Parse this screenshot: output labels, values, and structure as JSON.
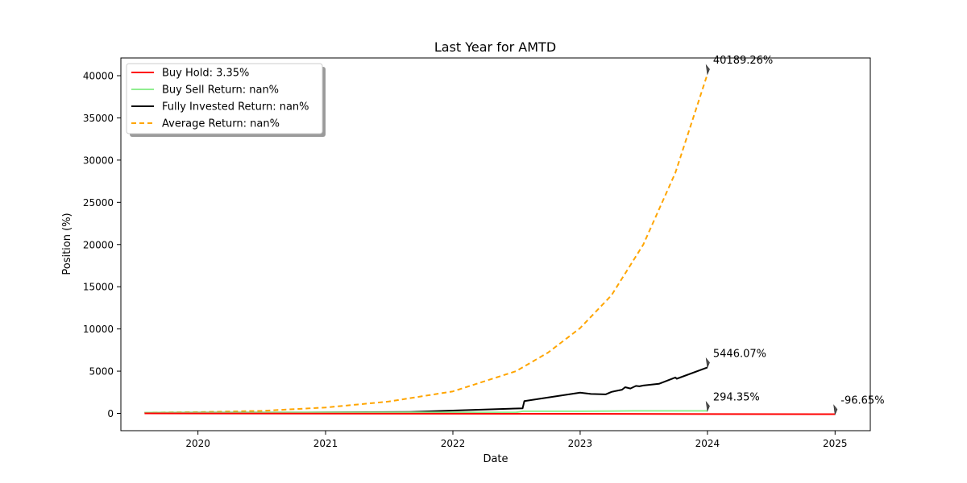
{
  "chart_data": {
    "type": "line",
    "title": "Last Year for AMTD",
    "xlabel": "Date",
    "ylabel": "Position (%)",
    "x_ticks": [
      "2020",
      "2021",
      "2022",
      "2023",
      "2024",
      "2025"
    ],
    "y_ticks": [
      "0",
      "5000",
      "10000",
      "15000",
      "20000",
      "25000",
      "30000",
      "35000",
      "40000"
    ],
    "xlim": [
      "2019-05-25",
      "2025-04-12"
    ],
    "ylim": [
      -2050,
      42100
    ],
    "grid": false,
    "legend_position": "top-left",
    "legend": [
      {
        "label": "Buy Hold: 3.35%",
        "color": "#ff0000",
        "style": "solid"
      },
      {
        "label": "Buy Sell Return: nan%",
        "color": "#90ee90",
        "style": "solid"
      },
      {
        "label": "Fully Invested Return: nan%",
        "color": "#000000",
        "style": "solid"
      },
      {
        "label": "Average Return: nan%",
        "color": "#ffa500",
        "style": "dashed"
      }
    ],
    "series": [
      {
        "name": "Average Return: nan%",
        "color": "#ffa500",
        "style": "dashed",
        "points": [
          [
            "2019-08-01",
            100
          ],
          [
            "2020-01-01",
            150
          ],
          [
            "2020-07-01",
            300
          ],
          [
            "2021-01-01",
            700
          ],
          [
            "2021-07-01",
            1400
          ],
          [
            "2022-01-01",
            2600
          ],
          [
            "2022-07-01",
            5000
          ],
          [
            "2022-10-01",
            7200
          ],
          [
            "2023-01-01",
            10100
          ],
          [
            "2023-04-01",
            14000
          ],
          [
            "2023-07-01",
            20000
          ],
          [
            "2023-10-01",
            28500
          ],
          [
            "2024-01-01",
            40189.26
          ]
        ]
      },
      {
        "name": "Fully Invested Return: nan%",
        "color": "#000000",
        "style": "solid",
        "points": [
          [
            "2019-08-01",
            100
          ],
          [
            "2021-01-01",
            110
          ],
          [
            "2021-09-01",
            170
          ],
          [
            "2022-01-01",
            330
          ],
          [
            "2022-07-20",
            600
          ],
          [
            "2022-07-25",
            1450
          ],
          [
            "2022-09-01",
            1700
          ],
          [
            "2023-01-01",
            2450
          ],
          [
            "2023-02-01",
            2300
          ],
          [
            "2023-03-15",
            2250
          ],
          [
            "2023-04-01",
            2550
          ],
          [
            "2023-05-01",
            2800
          ],
          [
            "2023-05-10",
            3100
          ],
          [
            "2023-05-25",
            2950
          ],
          [
            "2023-06-10",
            3250
          ],
          [
            "2023-06-20",
            3200
          ],
          [
            "2023-07-01",
            3300
          ],
          [
            "2023-08-15",
            3500
          ],
          [
            "2023-10-01",
            4250
          ],
          [
            "2023-10-05",
            4100
          ],
          [
            "2024-01-01",
            5446.07
          ]
        ]
      },
      {
        "name": "Buy Sell Return: nan%",
        "color": "#90ee90",
        "style": "solid",
        "points": [
          [
            "2019-08-01",
            100
          ],
          [
            "2022-07-01",
            120
          ],
          [
            "2022-07-20",
            250
          ],
          [
            "2023-01-01",
            250
          ],
          [
            "2023-06-01",
            300
          ],
          [
            "2024-01-01",
            294.35
          ]
        ]
      },
      {
        "name": "Buy Hold: 3.35%",
        "color": "#ff0000",
        "style": "solid",
        "points": [
          [
            "2019-08-01",
            0
          ],
          [
            "2025-01-01",
            -96.65
          ]
        ]
      }
    ],
    "annotations": [
      {
        "text": "40189.26%",
        "x": "2024-01-01",
        "y": 40189.26
      },
      {
        "text": "5446.07%",
        "x": "2024-01-01",
        "y": 5446.07
      },
      {
        "text": "294.35%",
        "x": "2024-01-01",
        "y": 294.35
      },
      {
        "text": "-96.65%",
        "x": "2025-01-01",
        "y": -96.65
      }
    ]
  }
}
